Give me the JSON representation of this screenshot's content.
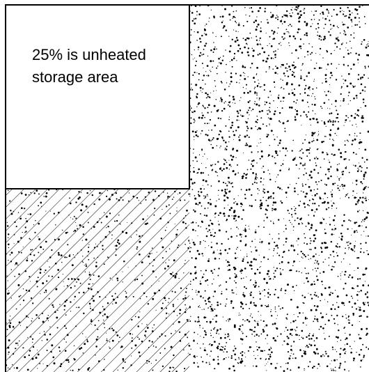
{
  "diagram": {
    "storage_label_line1": "25% is unheated",
    "storage_label_line2": "storage area"
  },
  "colors": {
    "line": "#000000",
    "background": "#ffffff",
    "dot": "#000000"
  }
}
